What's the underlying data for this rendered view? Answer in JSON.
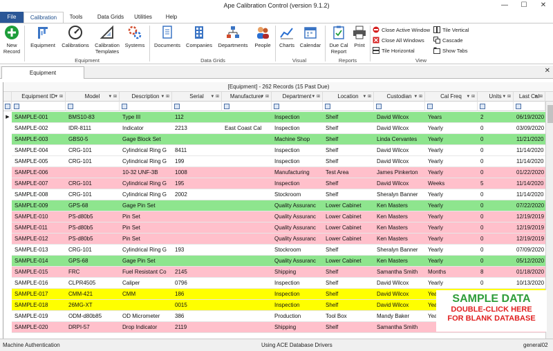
{
  "window": {
    "title": "Ape Calibration Control (version 9.1.2)",
    "controls": {
      "minimize": "—",
      "maximize": "☐",
      "close": "✕"
    }
  },
  "ribbon_tabs": [
    "File",
    "Calibration",
    "Tools",
    "Data Grids",
    "Utilities",
    "Help"
  ],
  "active_tab": "Calibration",
  "ribbon": {
    "new_record": "New Record",
    "equipment": "Equipment",
    "calibrations": "Calibrations",
    "calibration_templates": "Calibration Templates",
    "systems": "Systems",
    "documents": "Documents",
    "companies": "Companies",
    "departments": "Departments",
    "people": "People",
    "charts": "Charts",
    "calendar": "Calendar",
    "due_cal_report": "Due Cal Report",
    "print": "Print",
    "close_active_window": "Close Active Window",
    "close_all_windows": "Close All Windows",
    "tile_horizontal": "Tile Horizontal",
    "tile_vertical": "Tile Vertical",
    "cascade": "Cascade",
    "show_tabs": "Show Tabs",
    "group_equipment": "Equipment",
    "group_data_grids": "Data Grids",
    "group_visual": "Visual",
    "group_reports": "Reports",
    "group_view": "View"
  },
  "doc_tab": {
    "label": "Equipment",
    "close": "✕"
  },
  "grid": {
    "caption": "[Equipment] - 262 Records (15 Past Due)",
    "columns": [
      "Equipment ID",
      "Model",
      "Description",
      "Serial",
      "Manufacturer",
      "Department",
      "Location",
      "Custodian",
      "Cal Freq",
      "Units",
      "Last Cal"
    ],
    "header_icons": "▼ ⊞",
    "row_pointer": "▶",
    "rows": [
      {
        "c": [
          "SAMPLE-001",
          "BMS10-83",
          "Type III",
          "112",
          "",
          "Inspection",
          "Shelf",
          "David Wilcox",
          "Years",
          "2",
          "06/19/2020"
        ],
        "status": "green"
      },
      {
        "c": [
          "SAMPLE-002",
          "IDR-8111",
          "Indicator",
          "2213",
          "East Coast Cal",
          "Inspection",
          "Shelf",
          "David Wilcox",
          "Yearly",
          "0",
          "03/09/2020"
        ],
        "status": "white"
      },
      {
        "c": [
          "SAMPLE-003",
          "GBS0-5",
          "Gage Block Set",
          "",
          "",
          "Machine Shop",
          "Shelf",
          "Linda Cervantes",
          "Yearly",
          "0",
          "11/21/2020"
        ],
        "status": "green"
      },
      {
        "c": [
          "SAMPLE-004",
          "CRG-101",
          "Cylindrical Ring G",
          "8411",
          "",
          "Inspection",
          "Shelf",
          "David Wilcox",
          "Yearly",
          "0",
          "11/14/2020"
        ],
        "status": "white"
      },
      {
        "c": [
          "SAMPLE-005",
          "CRG-101",
          "Cylindrical Ring G",
          "199",
          "",
          "Inspection",
          "Shelf",
          "David Wilcox",
          "Yearly",
          "0",
          "11/14/2020"
        ],
        "status": "white"
      },
      {
        "c": [
          "SAMPLE-006",
          "",
          "10-32 UNF-3B",
          "1008",
          "",
          "Manufacturing",
          "Test Area",
          "James Pinkerton",
          "Yearly",
          "0",
          "01/22/2020"
        ],
        "status": "pink"
      },
      {
        "c": [
          "SAMPLE-007",
          "CRG-101",
          "Cylindrical Ring G",
          "195",
          "",
          "Inspection",
          "Shelf",
          "David Wilcox",
          "Weeks",
          "5",
          "11/14/2020"
        ],
        "status": "pink"
      },
      {
        "c": [
          "SAMPLE-008",
          "CRG-101",
          "Cylindrical Ring G",
          "2002",
          "",
          "Stockroom",
          "Shelf",
          "Sheralyn Banner",
          "Yearly",
          "0",
          "11/14/2020"
        ],
        "status": "white"
      },
      {
        "c": [
          "SAMPLE-009",
          "GPS-68",
          "Gage Pin Set",
          "",
          "",
          "Quality Assuranc",
          "Lower Cabinet",
          "Ken Masters",
          "Yearly",
          "0",
          "07/22/2020"
        ],
        "status": "green"
      },
      {
        "c": [
          "SAMPLE-010",
          "PS-d80b5",
          "Pin Set",
          "",
          "",
          "Quality Assuranc",
          "Lower Cabinet",
          "Ken Masters",
          "Yearly",
          "0",
          "12/19/2019"
        ],
        "status": "pink"
      },
      {
        "c": [
          "SAMPLE-011",
          "PS-d80b5",
          "Pin Set",
          "",
          "",
          "Quality Assuranc",
          "Lower Cabinet",
          "Ken Masters",
          "Yearly",
          "0",
          "12/19/2019"
        ],
        "status": "pink"
      },
      {
        "c": [
          "SAMPLE-012",
          "PS-d80b5",
          "Pin Set",
          "",
          "",
          "Quality Assuranc",
          "Lower Cabinet",
          "Ken Masters",
          "Yearly",
          "0",
          "12/19/2019"
        ],
        "status": "pink"
      },
      {
        "c": [
          "SAMPLE-013",
          "CRG-101",
          "Cylindrical Ring G",
          "193",
          "",
          "Stockroom",
          "Shelf",
          "Sheralyn Banner",
          "Yearly",
          "0",
          "07/09/2020"
        ],
        "status": "white"
      },
      {
        "c": [
          "SAMPLE-014",
          "GPS-68",
          "Gage Pin Set",
          "",
          "",
          "Quality Assuranc",
          "Lower Cabinet",
          "Ken Masters",
          "Yearly",
          "0",
          "05/12/2020"
        ],
        "status": "green"
      },
      {
        "c": [
          "SAMPLE-015",
          "FRC",
          "Fuel Resistant Co",
          "2145",
          "",
          "Shipping",
          "Shelf",
          "Samantha Smith",
          "Months",
          "8",
          "01/18/2020"
        ],
        "status": "pink"
      },
      {
        "c": [
          "SAMPLE-016",
          "CLPR4505",
          "Caliper",
          "0796",
          "",
          "Inspection",
          "Shelf",
          "David Wilcox",
          "Yearly",
          "0",
          "10/13/2020"
        ],
        "status": "white"
      },
      {
        "c": [
          "SAMPLE-017",
          "CMM-421",
          "CMM",
          "186",
          "",
          "Inspection",
          "Shelf",
          "David Wilcox",
          "Yearly",
          "",
          ""
        ],
        "status": "yellow"
      },
      {
        "c": [
          "SAMPLE-018",
          "26MG-XT",
          "",
          "0015",
          "",
          "Inspection",
          "Shelf",
          "David Wilcox",
          "Yearly",
          "",
          ""
        ],
        "status": "yellow"
      },
      {
        "c": [
          "SAMPLE-019",
          "ODM-d80b85",
          "OD Micrometer",
          "386",
          "",
          "Production",
          "Tool Box",
          "Mandy Baker",
          "Yearly",
          "",
          ""
        ],
        "status": "white"
      },
      {
        "c": [
          "SAMPLE-020",
          "DRPI-57",
          "Drop Indicator",
          "2119",
          "",
          "Shipping",
          "Shelf",
          "Samantha Smith",
          "",
          "",
          ""
        ],
        "status": "pink"
      }
    ]
  },
  "sample_overlay": {
    "line1": "SAMPLE DATA",
    "line2": "DOUBLE-CLICK HERE",
    "line3": "FOR BLANK DATABASE"
  },
  "statusbar": {
    "left": "Machine Authentication",
    "center": "Using ACE Database Drivers",
    "right": "general02"
  },
  "colors": {
    "green": "#8ee58e",
    "pink": "#ffc0cb",
    "yellow": "#ffff00",
    "white": "#ffffff",
    "file_tab": "#2b5797",
    "accent": "#1e4e8c",
    "sample_green": "#2e9d3a",
    "sample_red": "#e02020"
  }
}
